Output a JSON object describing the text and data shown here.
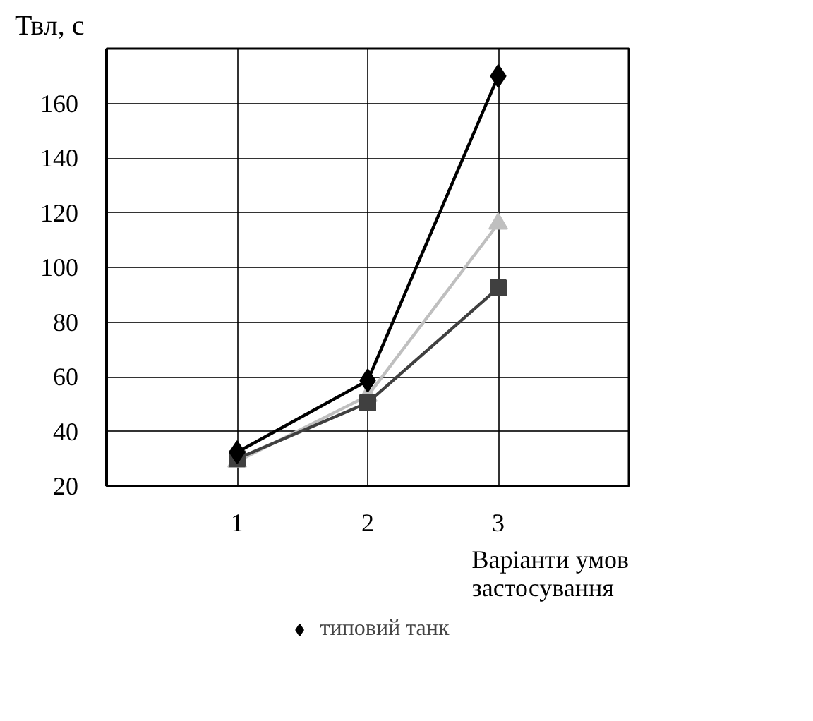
{
  "chart_data": {
    "type": "line",
    "ylabel": "Твл, с",
    "xlabel": "Варіанти умов\nзастосування",
    "x": [
      1,
      2,
      3
    ],
    "xlim": [
      0,
      4
    ],
    "xticks": [
      1,
      2,
      3
    ],
    "ylim": [
      20,
      180
    ],
    "yticks": [
      20,
      40,
      60,
      80,
      100,
      120,
      140,
      160,
      {
        "value": 180,
        "label": null
      }
    ],
    "grid": true,
    "legend": "bottom",
    "line_style": "solid",
    "series": [
      {
        "name": "типовий танк",
        "color": "#000000",
        "marker": "diamond",
        "values": [
          32.4,
          58.6,
          170
        ]
      },
      {
        "color": "#404040",
        "marker": "square",
        "values": [
          30,
          50.5,
          92.5
        ]
      },
      {
        "color": "#bfbfbf",
        "marker": "triangle",
        "values": [
          29,
          53,
          116
        ]
      }
    ]
  }
}
